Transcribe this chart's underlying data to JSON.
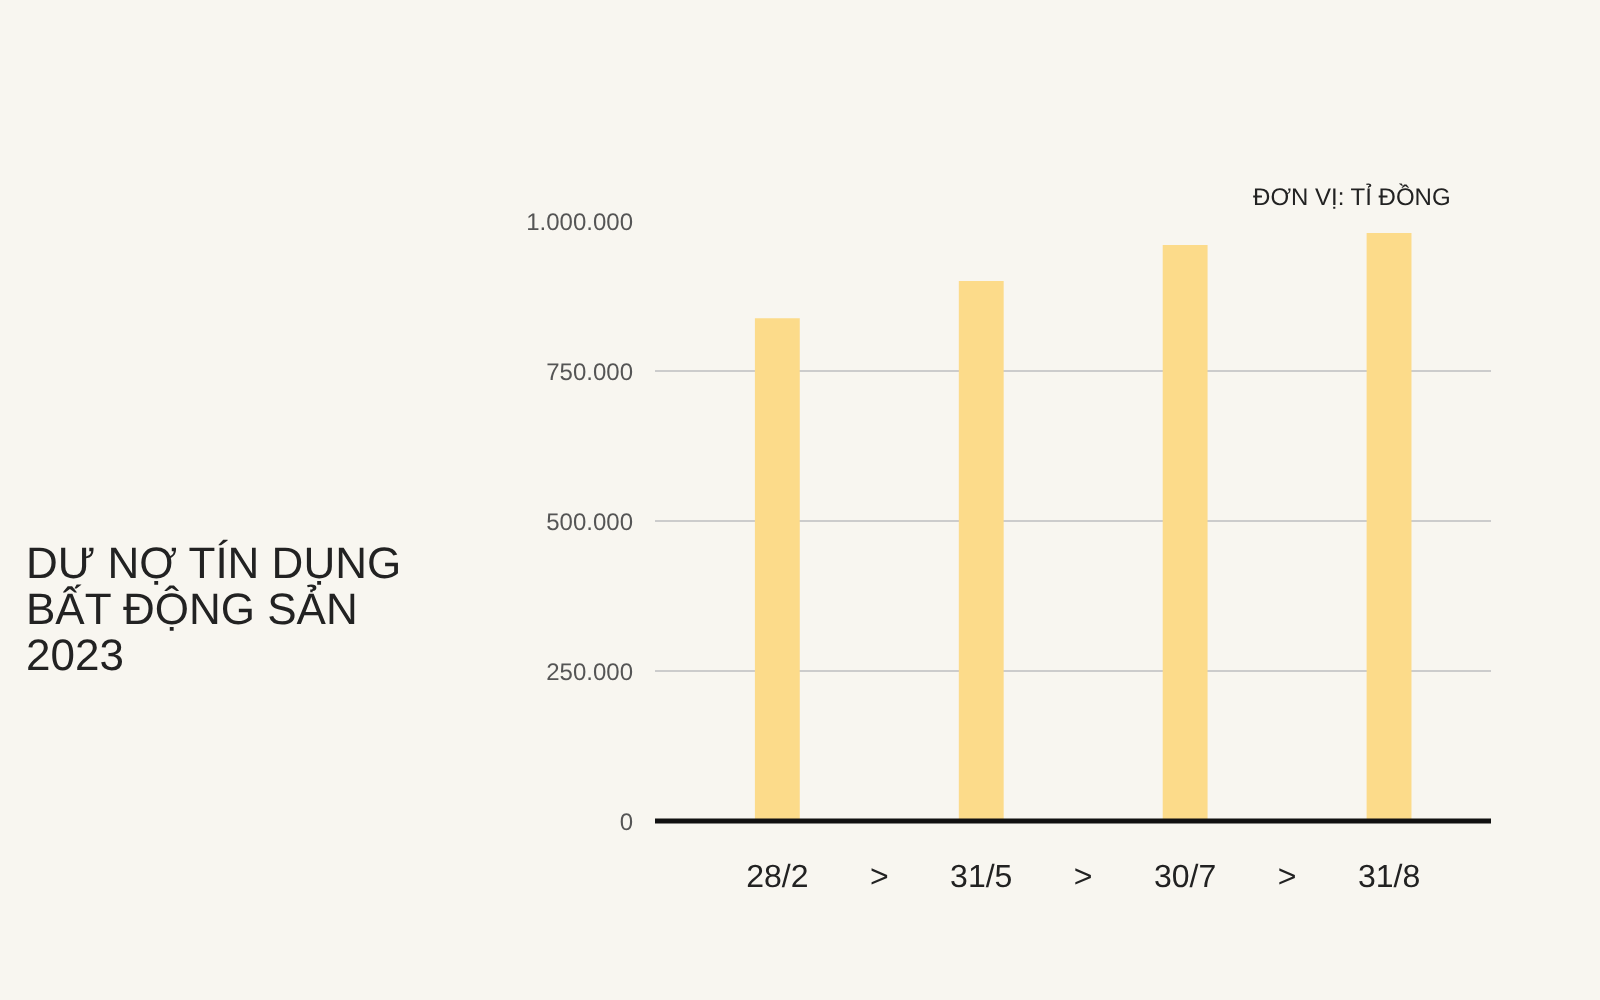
{
  "chart_data": {
    "type": "bar",
    "title": "DƯ NỢ TÍN DỤNG\nBẤT ĐỘNG SẢN\n2023",
    "categories": [
      "28/2",
      "31/5",
      "30/7",
      "31/8"
    ],
    "values": [
      838000,
      900000,
      960000,
      980000
    ],
    "color": "#fcdb8a",
    "ylim": [
      0,
      1000000
    ],
    "yticks": [
      {
        "value": 0,
        "label": "0"
      },
      {
        "value": 250000,
        "label": "250.000"
      },
      {
        "value": 500000,
        "label": "500.000"
      },
      {
        "value": 750000,
        "label": "750.000"
      },
      {
        "value": 1000000,
        "label": "1.000.000"
      }
    ],
    "grid": "y",
    "annotations": [
      "ĐƠN VỊ: TỈ ĐỒNG",
      ">",
      ">",
      ">"
    ]
  }
}
